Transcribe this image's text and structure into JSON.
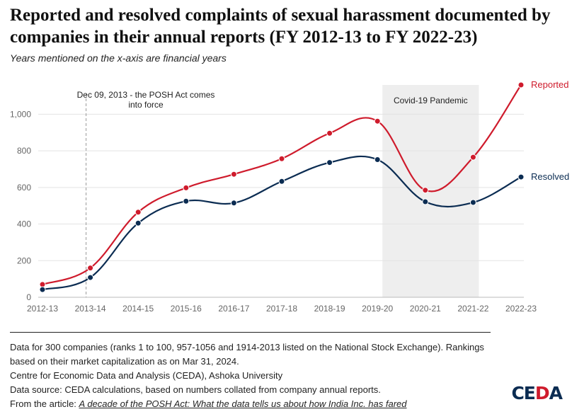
{
  "title": "Reported and resolved complaints of sexual harassment documented by companies in their annual reports (FY 2012-13 to FY 2022-23)",
  "subtitle": "Years mentioned on the x-axis are financial years",
  "colors": {
    "reported": "#cf1b2c",
    "resolved": "#0b2c52",
    "band": "#eeeeee",
    "grid": "#e3e3e3"
  },
  "chart_data": {
    "type": "line",
    "x": [
      "2012-13",
      "2013-14",
      "2014-15",
      "2015-16",
      "2016-17",
      "2017-18",
      "2018-19",
      "2019-20",
      "2020-21",
      "2021-22",
      "2022-23"
    ],
    "ylim": [
      0,
      1160
    ],
    "yticks": [
      0,
      200,
      400,
      600,
      800,
      1000
    ],
    "ytick_labels": [
      "0",
      "200",
      "400",
      "600",
      "800",
      "1,000"
    ],
    "grid": true,
    "series": [
      {
        "name": "Reported",
        "values": [
          70,
          160,
          465,
          598,
          672,
          757,
          896,
          962,
          585,
          765,
          1160
        ]
      },
      {
        "name": "Resolved",
        "values": [
          42,
          108,
          405,
          525,
          515,
          633,
          736,
          752,
          522,
          518,
          657
        ]
      }
    ],
    "annotations": {
      "posh_line_x": "2013-14",
      "posh_text": [
        "Dec 09, 2013 - the POSH Act comes",
        "into force"
      ],
      "band_range": [
        "2019-20",
        "2021-22"
      ],
      "band_text": "Covid-19 Pandemic"
    }
  },
  "footer": {
    "note1": "Data for 300 companies (ranks 1 to 100, 957-1056 and 1914-2013 listed on the National Stock Exchange). Rankings based on their market capitalization as on Mar 31, 2024.",
    "note2": "Centre for Economic Data and Analysis (CEDA), Ashoka University",
    "note3": "Data source: CEDA calculations, based on numbers collated from company annual reports.",
    "article_prefix": "From the article: ",
    "article_link": "A decade of the POSH Act: What the data tells us about how India Inc. has fared"
  },
  "logo": {
    "part1": "CE",
    "part2": "D",
    "part3": "A"
  }
}
